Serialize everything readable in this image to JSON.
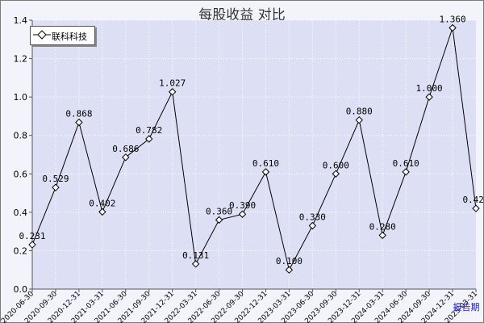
{
  "chart_data": {
    "type": "line",
    "title": "每股收益  对比",
    "legend_position": "top-left",
    "grid": true,
    "xlabel": "",
    "x_axis_end_label": "报告期",
    "ylabel": "",
    "ylim": [
      0,
      1.4
    ],
    "yticks": [
      "0.0",
      "0.2",
      "0.4",
      "0.6",
      "0.8",
      "1.0",
      "1.2",
      "1.4"
    ],
    "categories": [
      "2020-06-30",
      "2020-09-30",
      "2020-12-31",
      "2021-03-31",
      "2021-06-30",
      "2021-09-30",
      "2021-12-31",
      "2022-03-31",
      "2022-06-30",
      "2022-09-30",
      "2022-12-31",
      "2023-03-31",
      "2023-06-30",
      "2023-09-30",
      "2023-12-31",
      "2024-03-31",
      "2024-06-30",
      "2024-09-30",
      "2024-12-31",
      "2025-03-31"
    ],
    "series": [
      {
        "name": "联科科技",
        "color": "#000000",
        "marker": "diamond",
        "values": [
          0.231,
          0.529,
          0.868,
          0.402,
          0.686,
          0.782,
          1.027,
          0.131,
          0.36,
          0.39,
          0.61,
          0.1,
          0.33,
          0.6,
          0.88,
          0.28,
          0.61,
          1.0,
          1.36,
          0.42
        ],
        "labels": [
          "0.231",
          "0.529",
          "0.868",
          "0.402",
          "0.686",
          "0.782",
          "1.027",
          "0.131",
          "0.360",
          "0.390",
          "0.610",
          "0.100",
          "0.330",
          "0.600",
          "0.880",
          "0.280",
          "0.610",
          "1.000",
          "1.360",
          "0.420"
        ]
      }
    ]
  },
  "colors": {
    "plot_background": "#dde0f5",
    "grid": "#ffffff",
    "axis": "#555555",
    "x_axis_end_label": "#1a1ad0",
    "tick_label": "#000000"
  }
}
